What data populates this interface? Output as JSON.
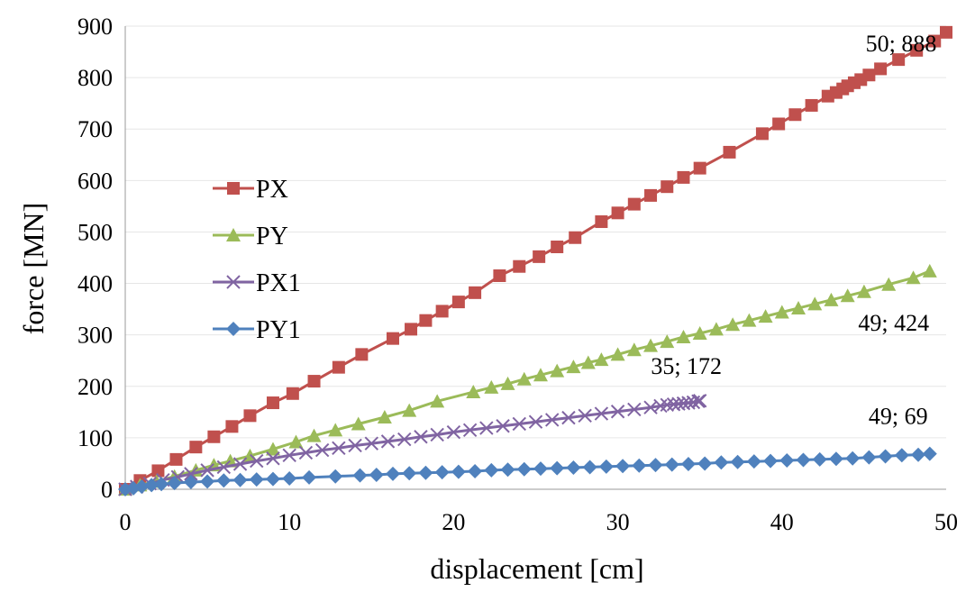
{
  "chart_data": {
    "type": "line",
    "title": "",
    "xlabel": "displacement [cm]",
    "ylabel": "force [MN]",
    "xlim": [
      0,
      50
    ],
    "ylim": [
      0,
      900
    ],
    "x_ticks": [
      0,
      10,
      20,
      30,
      40,
      50
    ],
    "y_ticks": [
      0,
      100,
      200,
      300,
      400,
      500,
      600,
      700,
      800,
      900
    ],
    "x_tick_labels": [
      "0",
      "10",
      "20",
      "30",
      "40",
      "50"
    ],
    "y_tick_labels": [
      "0",
      "100",
      "200",
      "300",
      "400",
      "500",
      "600",
      "700",
      "800",
      "900"
    ],
    "grid": "horizontal major gridlines",
    "legend_position": "left, middle",
    "series": [
      {
        "name": "PX",
        "color": "#C0504D",
        "marker": "square",
        "x": [
          0,
          0.9,
          2,
          3.1,
          4.3,
          5.4,
          6.5,
          7.6,
          9,
          10.2,
          11.5,
          13,
          14.4,
          16.3,
          17.4,
          18.3,
          19.3,
          20.3,
          21.3,
          22.8,
          24,
          25.2,
          26.3,
          27.4,
          29,
          30,
          31,
          32,
          33,
          34,
          35,
          36.8,
          38.8,
          39.8,
          40.8,
          41.8,
          42.8,
          43.3,
          43.7,
          44,
          44.4,
          44.8,
          45.3,
          46,
          47.1,
          48.2,
          49.3,
          50
        ],
        "y": [
          0,
          17,
          36,
          58,
          82,
          102,
          122,
          143,
          168,
          186,
          210,
          237,
          262,
          293,
          311,
          328,
          346,
          364,
          382,
          415,
          433,
          452,
          471,
          489,
          520,
          537,
          554,
          571,
          588,
          606,
          624,
          655,
          691,
          710,
          728,
          746,
          764,
          771,
          778,
          784,
          790,
          796,
          805,
          817,
          835,
          853,
          871,
          888
        ]
      },
      {
        "name": "PY",
        "color": "#9BBB59",
        "marker": "triangle",
        "x": [
          0,
          0.9,
          1.9,
          3,
          4.3,
          5.4,
          6.4,
          7.6,
          9,
          10.4,
          11.5,
          12.8,
          14.2,
          15.8,
          17.3,
          19,
          21.2,
          22.3,
          23.3,
          24.3,
          25.3,
          26.3,
          27.3,
          28.2,
          29,
          30,
          31,
          32,
          33,
          34,
          35,
          36,
          37,
          38,
          39,
          40,
          41,
          42,
          43,
          44,
          45,
          46.5,
          48,
          49
        ],
        "y": [
          0,
          8,
          15,
          25,
          37,
          47,
          55,
          65,
          78,
          92,
          104,
          115,
          127,
          140,
          153,
          171,
          189,
          198,
          205,
          214,
          222,
          230,
          238,
          246,
          252,
          262,
          271,
          279,
          287,
          296,
          303,
          311,
          320,
          328,
          336,
          344,
          352,
          360,
          368,
          376,
          384,
          398,
          411,
          424
        ]
      },
      {
        "name": "PX1",
        "color": "#8064A2",
        "marker": "x",
        "x": [
          0,
          0.7,
          1.5,
          2.3,
          3.2,
          4,
          5,
          6,
          7,
          8,
          9,
          10,
          11,
          12,
          13,
          14,
          15,
          16,
          17,
          18,
          19,
          20,
          21,
          22,
          23,
          24,
          25,
          26,
          27,
          28,
          29,
          30,
          31,
          32,
          32.6,
          33,
          33.4,
          33.7,
          34,
          34.3,
          34.6,
          34.9,
          35
        ],
        "y": [
          0,
          5,
          11,
          18,
          24,
          30,
          37,
          43,
          49,
          55,
          60,
          66,
          71,
          76,
          80,
          85,
          89,
          93,
          97,
          102,
          106,
          111,
          115,
          119,
          123,
          127,
          131,
          135,
          139,
          143,
          147,
          151,
          155,
          159,
          162,
          164,
          165,
          166,
          167,
          168,
          169,
          171,
          172
        ]
      },
      {
        "name": "PY1",
        "color": "#4F81BD",
        "marker": "diamond",
        "x": [
          0,
          0.5,
          1,
          1.6,
          2.2,
          3,
          4,
          5,
          6,
          7,
          8,
          9,
          10,
          11.2,
          12.8,
          14.3,
          15.3,
          16.3,
          17.3,
          18.3,
          19.3,
          20.3,
          21.3,
          22.3,
          23.3,
          24.3,
          25.3,
          26.3,
          27.3,
          28.3,
          29.3,
          30.3,
          31.3,
          32.3,
          33.3,
          34.3,
          35.3,
          36.3,
          37.3,
          38.3,
          39.3,
          40.3,
          41.3,
          42.3,
          43.3,
          44.3,
          45.3,
          46.3,
          47.3,
          48.3,
          49
        ],
        "y": [
          0,
          2,
          5,
          8,
          10,
          12,
          14,
          15,
          17,
          18,
          19,
          20,
          21,
          23,
          25,
          27,
          28,
          30,
          31,
          32,
          33,
          34,
          35,
          37,
          38,
          39,
          40,
          41,
          42,
          43,
          44,
          45,
          46,
          47,
          48,
          49,
          50,
          52,
          53,
          54,
          55,
          56,
          57,
          58,
          59,
          60,
          62,
          64,
          66,
          67,
          69
        ]
      }
    ],
    "annotations": [
      {
        "text": "50; 888",
        "x": 50,
        "y": 888,
        "series": "PX"
      },
      {
        "text": "49; 424",
        "x": 49,
        "y": 424,
        "series": "PY"
      },
      {
        "text": "35; 172",
        "x": 35,
        "y": 172,
        "series": "PX1"
      },
      {
        "text": "49; 69",
        "x": 49,
        "y": 69,
        "series": "PY1"
      }
    ]
  }
}
